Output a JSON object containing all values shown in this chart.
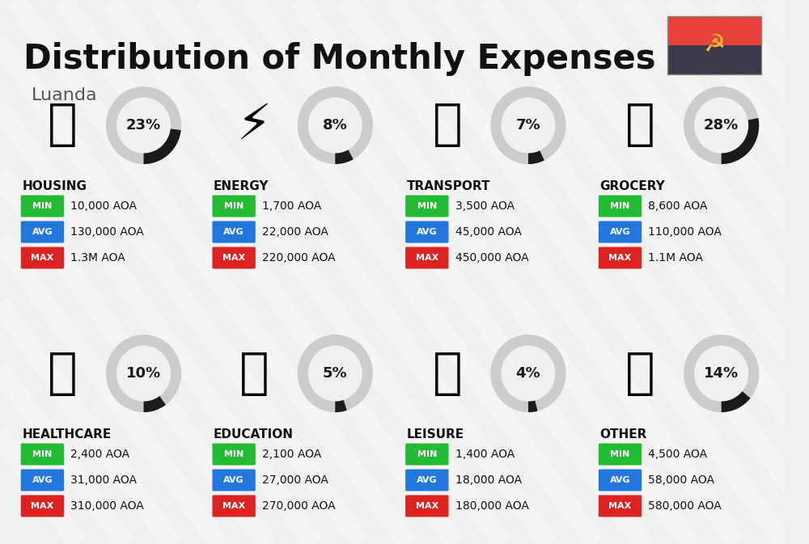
{
  "title": "Distribution of Monthly Expenses",
  "subtitle": "Luanda",
  "bg_color": "#f0f0f0",
  "categories": [
    {
      "name": "HOUSING",
      "percent": 23,
      "min": "10,000 AOA",
      "avg": "130,000 AOA",
      "max": "1.3M AOA",
      "row": 0,
      "col": 0
    },
    {
      "name": "ENERGY",
      "percent": 8,
      "min": "1,700 AOA",
      "avg": "22,000 AOA",
      "max": "220,000 AOA",
      "row": 0,
      "col": 1
    },
    {
      "name": "TRANSPORT",
      "percent": 7,
      "min": "3,500 AOA",
      "avg": "45,000 AOA",
      "max": "450,000 AOA",
      "row": 0,
      "col": 2
    },
    {
      "name": "GROCERY",
      "percent": 28,
      "min": "8,600 AOA",
      "avg": "110,000 AOA",
      "max": "1.1M AOA",
      "row": 0,
      "col": 3
    },
    {
      "name": "HEALTHCARE",
      "percent": 10,
      "min": "2,400 AOA",
      "avg": "31,000 AOA",
      "max": "310,000 AOA",
      "row": 1,
      "col": 0
    },
    {
      "name": "EDUCATION",
      "percent": 5,
      "min": "2,100 AOA",
      "avg": "27,000 AOA",
      "max": "270,000 AOA",
      "row": 1,
      "col": 1
    },
    {
      "name": "LEISURE",
      "percent": 4,
      "min": "1,400 AOA",
      "avg": "18,000 AOA",
      "max": "180,000 AOA",
      "row": 1,
      "col": 2
    },
    {
      "name": "OTHER",
      "percent": 14,
      "min": "4,500 AOA",
      "avg": "58,000 AOA",
      "max": "580,000 AOA",
      "row": 1,
      "col": 3
    }
  ],
  "min_color": "#22bb33",
  "avg_color": "#2277dd",
  "max_color": "#dd2222",
  "title_color": "#111111",
  "subtitle_color": "#555555",
  "category_name_color": "#111111",
  "value_color": "#111111",
  "ring_bg_color": "#cccccc",
  "ring_fg_color": "#1a1a1a",
  "ring_inner_color": "#f0f0f0",
  "flag_red": "#e8403a",
  "flag_black": "#3a3a4a",
  "flag_emblem": "#f0c030"
}
